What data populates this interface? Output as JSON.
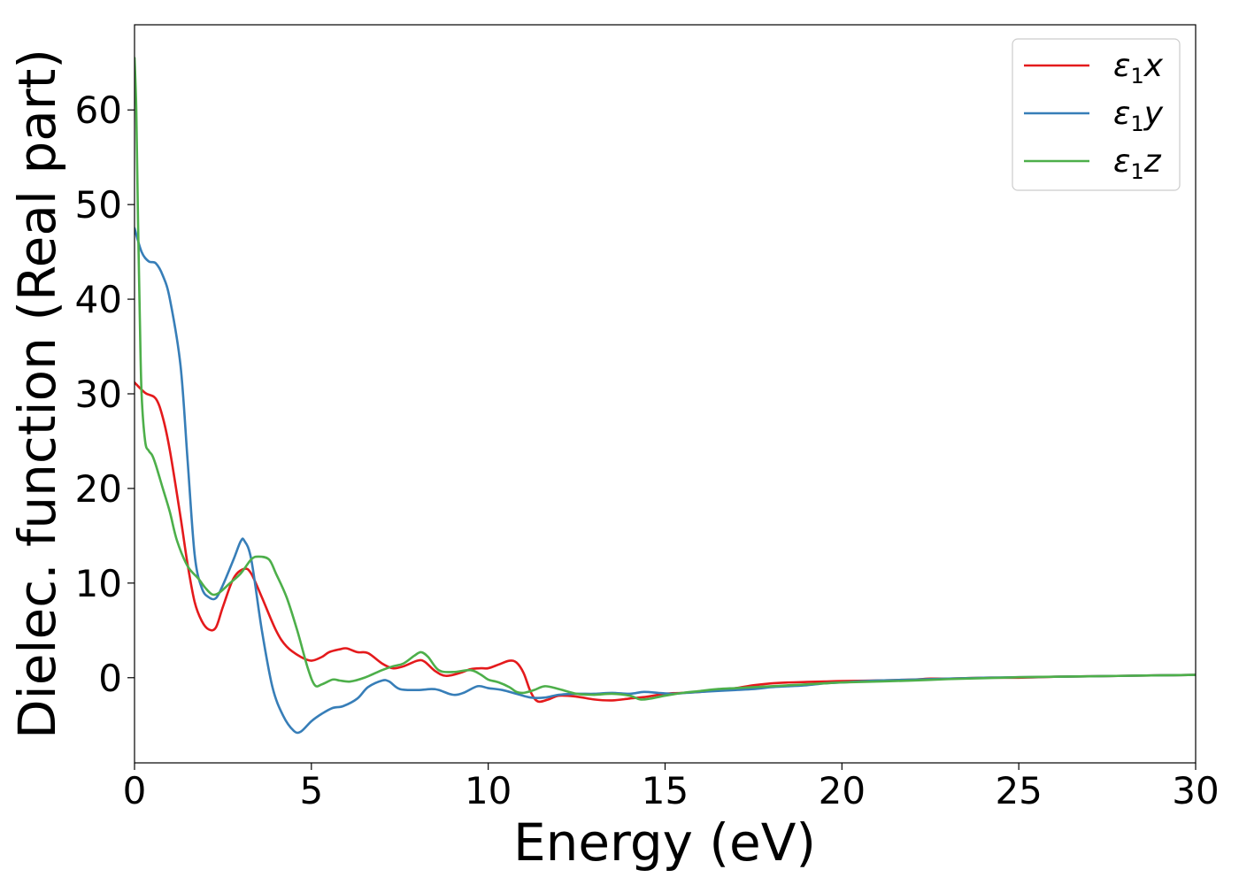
{
  "chart_data": {
    "type": "line",
    "xlabel": "Energy (eV)",
    "ylabel": "Dielec. function (Real part)",
    "xlim": [
      0,
      30
    ],
    "ylim": [
      -9,
      69
    ],
    "xticks": [
      0,
      5,
      10,
      15,
      20,
      25,
      30
    ],
    "yticks": [
      0,
      10,
      20,
      30,
      40,
      50,
      60
    ],
    "grid": false,
    "legend_position": "top-right",
    "series": [
      {
        "name": "ε₁x",
        "legend": {
          "base": "ε",
          "sub": "1",
          "var": "x"
        },
        "color": "#e41a1c",
        "x": [
          0,
          0.3,
          0.6,
          0.8,
          1.0,
          1.3,
          1.5,
          1.7,
          1.9,
          2.1,
          2.3,
          2.5,
          2.8,
          3.1,
          3.3,
          3.6,
          4.0,
          4.3,
          4.7,
          5.0,
          5.3,
          5.5,
          5.8,
          6.0,
          6.3,
          6.6,
          7.0,
          7.3,
          7.6,
          8.0,
          8.2,
          8.5,
          8.8,
          9.2,
          9.5,
          9.8,
          10.0,
          10.3,
          10.6,
          10.8,
          11.0,
          11.2,
          11.4,
          11.7,
          12.0,
          12.5,
          13.0,
          13.5,
          14.0,
          14.5,
          15.0,
          15.5,
          16.0,
          16.5,
          17.0,
          17.5,
          18.0,
          18.5,
          19.0,
          19.5,
          20.0,
          21.0,
          22.0,
          22.5,
          23.0,
          24.0,
          25.0,
          26.0,
          27.0,
          28.0,
          29.0,
          30.0
        ],
        "y": [
          31.2,
          30.1,
          29.5,
          27.5,
          24.0,
          17.0,
          12.0,
          8.0,
          6.0,
          5.1,
          5.3,
          7.5,
          10.5,
          11.5,
          11.0,
          8.5,
          5.0,
          3.3,
          2.2,
          1.8,
          2.2,
          2.7,
          3.0,
          3.1,
          2.7,
          2.6,
          1.5,
          1.0,
          1.2,
          1.8,
          1.7,
          0.7,
          0.2,
          0.5,
          0.9,
          1.0,
          1.0,
          1.4,
          1.8,
          1.6,
          0.5,
          -1.5,
          -2.5,
          -2.3,
          -1.9,
          -2.0,
          -2.3,
          -2.4,
          -2.2,
          -2.0,
          -1.7,
          -1.6,
          -1.5,
          -1.3,
          -1.1,
          -0.8,
          -0.6,
          -0.5,
          -0.45,
          -0.4,
          -0.35,
          -0.3,
          -0.2,
          -0.1,
          -0.1,
          0.0,
          0.0,
          0.1,
          0.15,
          0.2,
          0.25,
          0.3
        ]
      },
      {
        "name": "ε₁y",
        "legend": {
          "base": "ε",
          "sub": "1",
          "var": "y"
        },
        "color": "#377eb8",
        "x": [
          0,
          0.2,
          0.4,
          0.6,
          0.8,
          1.0,
          1.3,
          1.5,
          1.7,
          1.9,
          2.1,
          2.3,
          2.5,
          2.8,
          3.0,
          3.1,
          3.3,
          3.6,
          3.9,
          4.2,
          4.5,
          4.7,
          5.0,
          5.3,
          5.6,
          5.9,
          6.3,
          6.6,
          7.0,
          7.2,
          7.5,
          8.0,
          8.4,
          8.6,
          9.0,
          9.3,
          9.7,
          10.0,
          10.4,
          10.8,
          11.2,
          11.6,
          12.0,
          12.5,
          13.0,
          13.5,
          14.0,
          14.4,
          14.8,
          15.2,
          15.6,
          16.0,
          16.5,
          17.0,
          17.5,
          18.0,
          18.5,
          19.0,
          19.5,
          20.0,
          21.0,
          22.0,
          23.0,
          24.0,
          25.0,
          26.0,
          27.0,
          28.0,
          29.0,
          30.0
        ],
        "y": [
          47.5,
          45.0,
          44.0,
          43.8,
          42.5,
          40.0,
          33.0,
          23.0,
          13.0,
          9.5,
          8.5,
          8.4,
          9.8,
          12.5,
          14.4,
          14.5,
          12.5,
          5.0,
          -1.0,
          -4.0,
          -5.6,
          -5.7,
          -4.6,
          -3.8,
          -3.2,
          -3.0,
          -2.2,
          -1.0,
          -0.3,
          -0.4,
          -1.2,
          -1.3,
          -1.2,
          -1.3,
          -1.8,
          -1.6,
          -0.9,
          -1.1,
          -1.3,
          -1.7,
          -2.1,
          -2.1,
          -1.8,
          -1.7,
          -1.7,
          -1.6,
          -1.7,
          -1.5,
          -1.6,
          -1.7,
          -1.6,
          -1.5,
          -1.4,
          -1.3,
          -1.2,
          -1.0,
          -0.9,
          -0.8,
          -0.6,
          -0.5,
          -0.3,
          -0.2,
          -0.1,
          0.0,
          0.05,
          0.1,
          0.15,
          0.2,
          0.25,
          0.3
        ]
      },
      {
        "name": "ε₁z",
        "legend": {
          "base": "ε",
          "sub": "1",
          "var": "z"
        },
        "color": "#4daf4a",
        "x": [
          0,
          0.05,
          0.1,
          0.15,
          0.2,
          0.3,
          0.4,
          0.5,
          0.6,
          0.8,
          1.0,
          1.2,
          1.5,
          1.8,
          2.0,
          2.2,
          2.4,
          2.7,
          3.0,
          3.3,
          3.5,
          3.8,
          4.0,
          4.3,
          4.6,
          4.9,
          5.1,
          5.3,
          5.6,
          5.8,
          6.1,
          6.5,
          7.0,
          7.3,
          7.6,
          7.9,
          8.1,
          8.3,
          8.6,
          9.0,
          9.5,
          9.8,
          10.0,
          10.3,
          10.6,
          10.8,
          11.0,
          11.3,
          11.6,
          12.0,
          12.5,
          13.0,
          13.5,
          14.0,
          14.3,
          14.6,
          15.0,
          15.5,
          16.0,
          16.5,
          17.0,
          17.5,
          18.0,
          18.5,
          19.0,
          19.5,
          20.0,
          21.0,
          22.0,
          23.0,
          24.0,
          25.0,
          26.0,
          27.0,
          28.0,
          29.0,
          30.0
        ],
        "y": [
          65.5,
          60.0,
          48.0,
          38.0,
          30.0,
          25.0,
          24.0,
          23.5,
          22.5,
          20.0,
          17.5,
          14.5,
          11.8,
          10.5,
          9.5,
          8.8,
          9.0,
          10.0,
          11.0,
          12.5,
          12.8,
          12.5,
          11.0,
          8.5,
          5.0,
          1.0,
          -0.8,
          -0.7,
          -0.2,
          -0.3,
          -0.4,
          0.0,
          0.8,
          1.2,
          1.5,
          2.3,
          2.7,
          2.2,
          0.8,
          0.6,
          0.8,
          0.3,
          -0.2,
          -0.5,
          -1.0,
          -1.5,
          -1.6,
          -1.3,
          -0.9,
          -1.2,
          -1.7,
          -1.8,
          -1.7,
          -1.9,
          -2.3,
          -2.2,
          -1.9,
          -1.6,
          -1.4,
          -1.2,
          -1.1,
          -1.0,
          -0.9,
          -0.8,
          -0.7,
          -0.6,
          -0.5,
          -0.4,
          -0.3,
          -0.15,
          -0.05,
          0.05,
          0.1,
          0.15,
          0.2,
          0.25,
          0.3
        ]
      }
    ]
  }
}
